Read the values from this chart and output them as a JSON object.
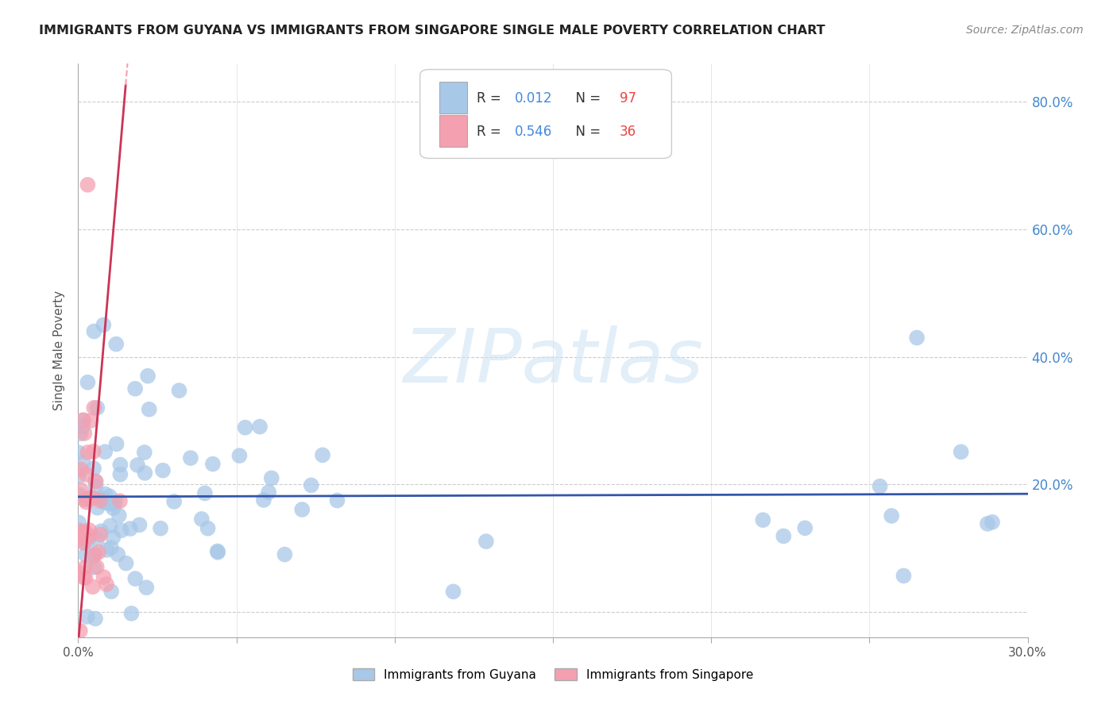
{
  "title": "IMMIGRANTS FROM GUYANA VS IMMIGRANTS FROM SINGAPORE SINGLE MALE POVERTY CORRELATION CHART",
  "source": "Source: ZipAtlas.com",
  "ylabel": "Single Male Poverty",
  "xlim": [
    0.0,
    0.3
  ],
  "ylim": [
    -0.04,
    0.86
  ],
  "x_tick_positions": [
    0.0,
    0.05,
    0.1,
    0.15,
    0.2,
    0.25,
    0.3
  ],
  "x_tick_labels": [
    "0.0%",
    "",
    "",
    "",
    "",
    "",
    "30.0%"
  ],
  "y_tick_positions": [
    0.0,
    0.2,
    0.4,
    0.6,
    0.8
  ],
  "y_tick_labels_right": [
    "",
    "20.0%",
    "40.0%",
    "60.0%",
    "80.0%"
  ],
  "guyana_color": "#A8C8E8",
  "singapore_color": "#F4A0B0",
  "guyana_line_color": "#3355AA",
  "singapore_line_color": "#CC3355",
  "singapore_dash_color": "#F4A0B0",
  "R_guyana": 0.012,
  "N_guyana": 97,
  "R_singapore": 0.546,
  "N_singapore": 36,
  "legend_label_guyana": "Immigrants from Guyana",
  "legend_label_singapore": "Immigrants from Singapore",
  "watermark": "ZIPatlas",
  "background_color": "#FFFFFF",
  "legend_R_color": "#4488DD",
  "legend_N_color": "#EE4444"
}
